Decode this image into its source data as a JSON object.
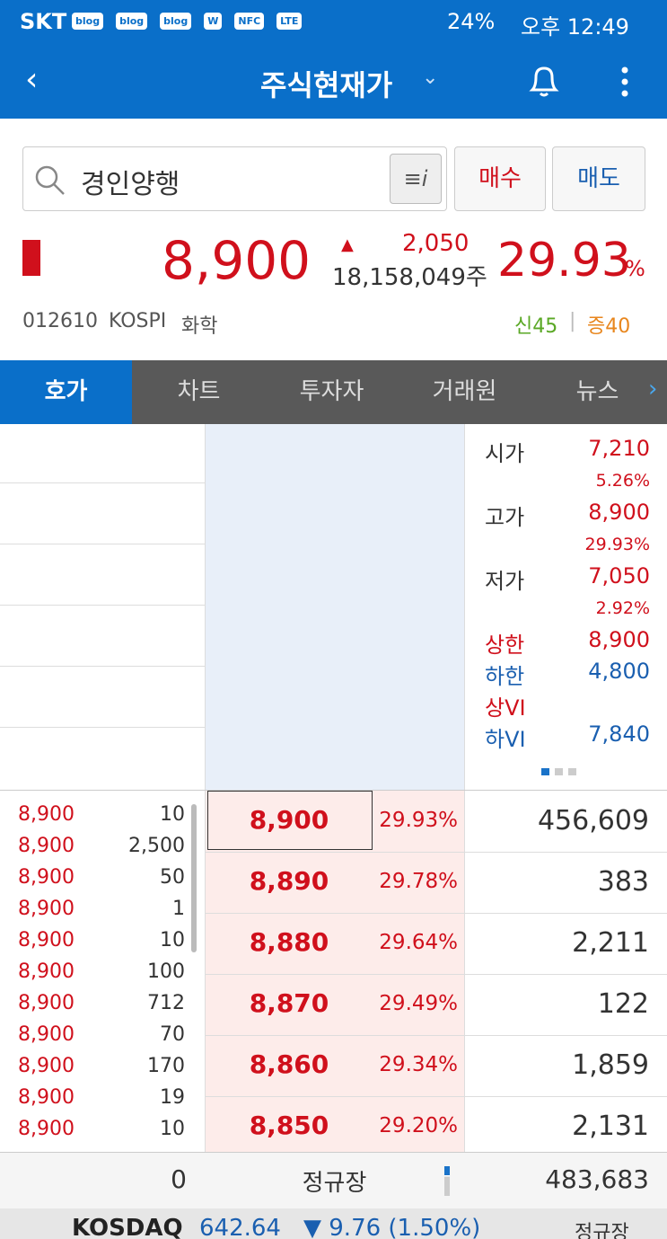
{
  "status_bar": {
    "carrier": "SKT",
    "icons": [
      "blog",
      "blog",
      "blog",
      "W",
      "NFC",
      "LTE"
    ],
    "battery": "24%",
    "time": "오후 12:49"
  },
  "header": {
    "title": "주식현재가"
  },
  "search": {
    "query": "경인양행",
    "buy": "매수",
    "sell": "매도"
  },
  "quote": {
    "price": "8,900",
    "change": "2,050",
    "volume": "18,158,049주",
    "rate": "29.93",
    "rate_unit": "%",
    "code": "012610",
    "market": "KOSPI",
    "sector": "화학",
    "credit": "신45",
    "separator": "|",
    "margin": "증40"
  },
  "tabs": [
    "호가",
    "차트",
    "투자자",
    "거래원",
    "뉴스"
  ],
  "info": [
    {
      "label": "시가",
      "value": "7,210",
      "rate": "5.26%"
    },
    {
      "label": "고가",
      "value": "8,900",
      "rate": "29.93%"
    },
    {
      "label": "저가",
      "value": "7,050",
      "rate": "2.92%"
    },
    {
      "label": "상한",
      "value": "8,900"
    },
    {
      "label": "하한",
      "value": "4,800"
    },
    {
      "label": "상VI"
    },
    {
      "label": "하VI",
      "value": "7,840"
    }
  ],
  "bids": [
    {
      "price": "8,900",
      "rate": "29.93%",
      "volume": "456,609"
    },
    {
      "price": "8,890",
      "rate": "29.78%",
      "volume": "383"
    },
    {
      "price": "8,880",
      "rate": "29.64%",
      "volume": "2,211"
    },
    {
      "price": "8,870",
      "rate": "29.49%",
      "volume": "122"
    },
    {
      "price": "8,860",
      "rate": "29.34%",
      "volume": "1,859"
    },
    {
      "price": "8,850",
      "rate": "29.20%",
      "volume": "2,131"
    }
  ],
  "trades": [
    {
      "price": "8,900",
      "qty": "10"
    },
    {
      "price": "8,900",
      "qty": "2,500"
    },
    {
      "price": "8,900",
      "qty": "50"
    },
    {
      "price": "8,900",
      "qty": "1"
    },
    {
      "price": "8,900",
      "qty": "10"
    },
    {
      "price": "8,900",
      "qty": "100"
    },
    {
      "price": "8,900",
      "qty": "712"
    },
    {
      "price": "8,900",
      "qty": "70"
    },
    {
      "price": "8,900",
      "qty": "170"
    },
    {
      "price": "8,900",
      "qty": "19"
    },
    {
      "price": "8,900",
      "qty": "10"
    }
  ],
  "footer": {
    "ask_total": "0",
    "session": "정규장",
    "bid_total": "483,683"
  },
  "ticker": {
    "index": "KOSDAQ",
    "value": "642.64",
    "change": "▼ 9.76 (1.50%)",
    "session": "정규장"
  }
}
